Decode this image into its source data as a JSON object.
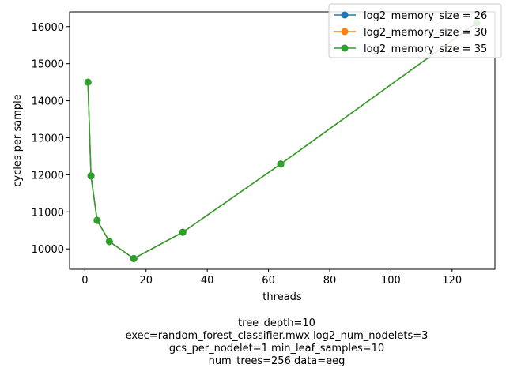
{
  "chart_data": {
    "type": "line",
    "xlabel": "threads",
    "ylabel": "cycles per sample",
    "xlim": [
      -5,
      134
    ],
    "ylim": [
      9450,
      16400
    ],
    "xticks": [
      0,
      20,
      40,
      60,
      80,
      100,
      120
    ],
    "yticks": [
      10000,
      11000,
      12000,
      13000,
      14000,
      15000,
      16000
    ],
    "legend_position": "top-right",
    "grid": false,
    "series": [
      {
        "name": "log2_memory_size = 26",
        "color": "#1f77b4",
        "x": [
          1,
          2,
          4,
          8,
          16,
          32,
          64,
          128
        ],
        "y": [
          14500,
          11970,
          10770,
          10200,
          9740,
          10450,
          12290,
          16100
        ]
      },
      {
        "name": "log2_memory_size = 30",
        "color": "#ff7f0e",
        "x": [
          1,
          2,
          4,
          8,
          16,
          32,
          64,
          128
        ],
        "y": [
          14500,
          11970,
          10770,
          10200,
          9740,
          10450,
          12290,
          16100
        ]
      },
      {
        "name": "log2_memory_size = 35",
        "color": "#2ca02c",
        "x": [
          1,
          2,
          4,
          8,
          16,
          32,
          64,
          128
        ],
        "y": [
          14500,
          11970,
          10770,
          10200,
          9740,
          10450,
          12290,
          16100
        ]
      }
    ],
    "caption_lines": [
      "tree_depth=10",
      "exec=random_forest_classifier.mwx   log2_num_nodelets=3",
      "gcs_per_nodelet=1   min_leaf_samples=10",
      "num_trees=256   data=eeg"
    ]
  }
}
